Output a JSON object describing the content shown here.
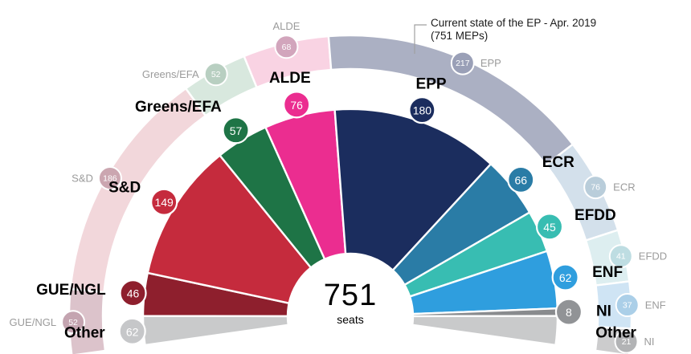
{
  "caption": {
    "line1": "Current state of the EP - Apr. 2019",
    "line2": "(751 MEPs)"
  },
  "center": {
    "value": "751",
    "unit": "seats"
  },
  "chart_data": {
    "type": "hemicycle-donut",
    "title": "751 seats",
    "legend_note": "Current state of the EP - Apr. 2019 (751 MEPs)",
    "inner_ring": {
      "total": 751,
      "groups": [
        {
          "name": "Other",
          "value": 62,
          "badge": "62",
          "arc_seats": 31,
          "color": "#c9cacb",
          "badge_color": "#c6c7c9"
        },
        {
          "name": "GUE/NGL",
          "value": 46,
          "badge": "46",
          "arc_seats": 46,
          "color": "#8e1f2d",
          "badge_color": "#8e1f2d"
        },
        {
          "name": "S&D",
          "value": 149,
          "badge": "149",
          "arc_seats": 149,
          "color": "#c52b3d",
          "badge_color": "#c52b3d"
        },
        {
          "name": "Greens/EFA",
          "value": 57,
          "badge": "57",
          "arc_seats": 57,
          "color": "#1e7446",
          "badge_color": "#1e7446"
        },
        {
          "name": "ALDE",
          "value": 76,
          "badge": "76",
          "arc_seats": 76,
          "color": "#eb2d90",
          "badge_color": "#eb2d90"
        },
        {
          "name": "EPP",
          "value": 180,
          "badge": "180",
          "arc_seats": 180,
          "color": "#1b2d5e",
          "badge_color": "#1b2d5e"
        },
        {
          "name": "ECR",
          "value": 66,
          "badge": "66",
          "arc_seats": 66,
          "color": "#2a7ca6",
          "badge_color": "#2a7ca6"
        },
        {
          "name": "EFDD",
          "value": 45,
          "badge": "45",
          "arc_seats": 45,
          "color": "#38bdb2",
          "badge_color": "#38bdb2"
        },
        {
          "name": "ENF",
          "value": 62,
          "badge": "62",
          "arc_seats": 62,
          "color": "#2f9ede",
          "badge_color": "#2f9ede"
        },
        {
          "name": "NI",
          "value": 8,
          "badge": "8",
          "arc_seats": 8,
          "color": "#898b8e",
          "badge_color": "#919396"
        },
        {
          "name": "Other",
          "value": 62,
          "badge": null,
          "arc_seats": 31,
          "color": "#c9cacb",
          "badge_color": "#c9cacb"
        }
      ]
    },
    "outer_ring": {
      "total": 750,
      "groups": [
        {
          "name": "GUE/NGL",
          "value": 52,
          "badge": "52",
          "arc_seats": 52,
          "color": "#dcc3cb",
          "badge_color": "#c4a4b0"
        },
        {
          "name": "S&D",
          "value": 186,
          "badge": "186",
          "arc_seats": 186,
          "color": "#f2d7db",
          "badge_color": "#cba6b0"
        },
        {
          "name": "Greens/EFA",
          "value": 52,
          "badge": "52",
          "arc_seats": 52,
          "color": "#d8e8de",
          "badge_color": "#b8cfc1"
        },
        {
          "name": "ALDE",
          "value": 68,
          "badge": "68",
          "arc_seats": 68,
          "color": "#f9d3e3",
          "badge_color": "#d2a5bc"
        },
        {
          "name": "EPP",
          "value": 217,
          "badge": "217",
          "arc_seats": 217,
          "color": "#abb0c3",
          "badge_color": "#9aa0b7"
        },
        {
          "name": "ECR",
          "value": 76,
          "badge": "76",
          "arc_seats": 76,
          "color": "#d3e0eb",
          "badge_color": "#b9cdda"
        },
        {
          "name": "EFDD",
          "value": 41,
          "badge": "41",
          "arc_seats": 41,
          "color": "#ddeef0",
          "badge_color": "#bedde2"
        },
        {
          "name": "ENF",
          "value": 37,
          "badge": "37",
          "arc_seats": 37,
          "color": "#cfe4f4",
          "badge_color": "#abcfe8"
        },
        {
          "name": "NI",
          "value": 21,
          "badge": "21",
          "arc_seats": 21,
          "color": "#cccccd",
          "badge_color": "#b2b3b5"
        }
      ]
    },
    "colors": {
      "inner_label_text": "#000000",
      "outer_label_text": "#9b9b9b",
      "badge_text": "#ffffff",
      "leader_line": "#a0a0a0"
    }
  }
}
